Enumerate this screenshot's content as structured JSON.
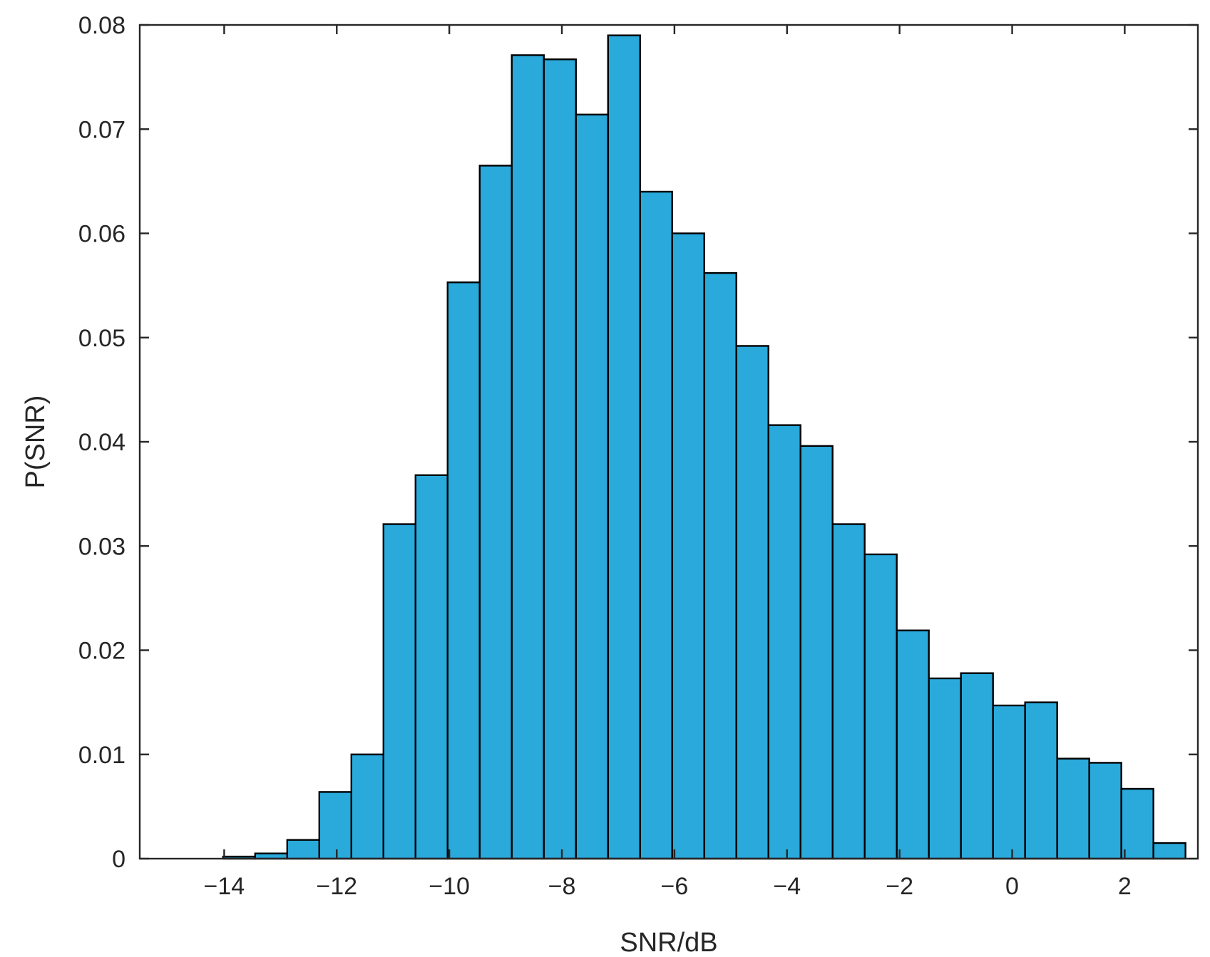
{
  "chart_data": {
    "type": "bar",
    "title": "",
    "xlabel": "SNR/dB",
    "ylabel": "P(SNR)",
    "xlim": [
      -15.5,
      3.3
    ],
    "ylim": [
      0,
      0.08
    ],
    "xticks": [
      -14,
      -12,
      -10,
      -8,
      -6,
      -4,
      -2,
      0,
      2
    ],
    "yticks": [
      0,
      0.01,
      0.02,
      0.03,
      0.04,
      0.05,
      0.06,
      0.07,
      0.08
    ],
    "xtick_labels": [
      "−14",
      "−12",
      "−10",
      "−8",
      "−6",
      "−4",
      "−2",
      "0",
      "2"
    ],
    "ytick_labels": [
      "0",
      "0.01",
      "0.02",
      "0.03",
      "0.04",
      "0.05",
      "0.06",
      "0.07",
      "0.08"
    ],
    "bin_width": 0.57,
    "bin_edges_start": -14.02,
    "values": [
      0.0002,
      0.0005,
      0.0018,
      0.0064,
      0.01,
      0.0321,
      0.0368,
      0.0553,
      0.0665,
      0.0771,
      0.0767,
      0.0714,
      0.079,
      0.064,
      0.06,
      0.0562,
      0.0492,
      0.0416,
      0.0396,
      0.0321,
      0.0292,
      0.0219,
      0.0173,
      0.0178,
      0.0147,
      0.015,
      0.0096,
      0.0092,
      0.0067,
      0.0015
    ],
    "grid": false,
    "colors": {
      "bar_fill": "#2aa9db",
      "bar_edge": "#000000",
      "axis": "#262626"
    }
  }
}
